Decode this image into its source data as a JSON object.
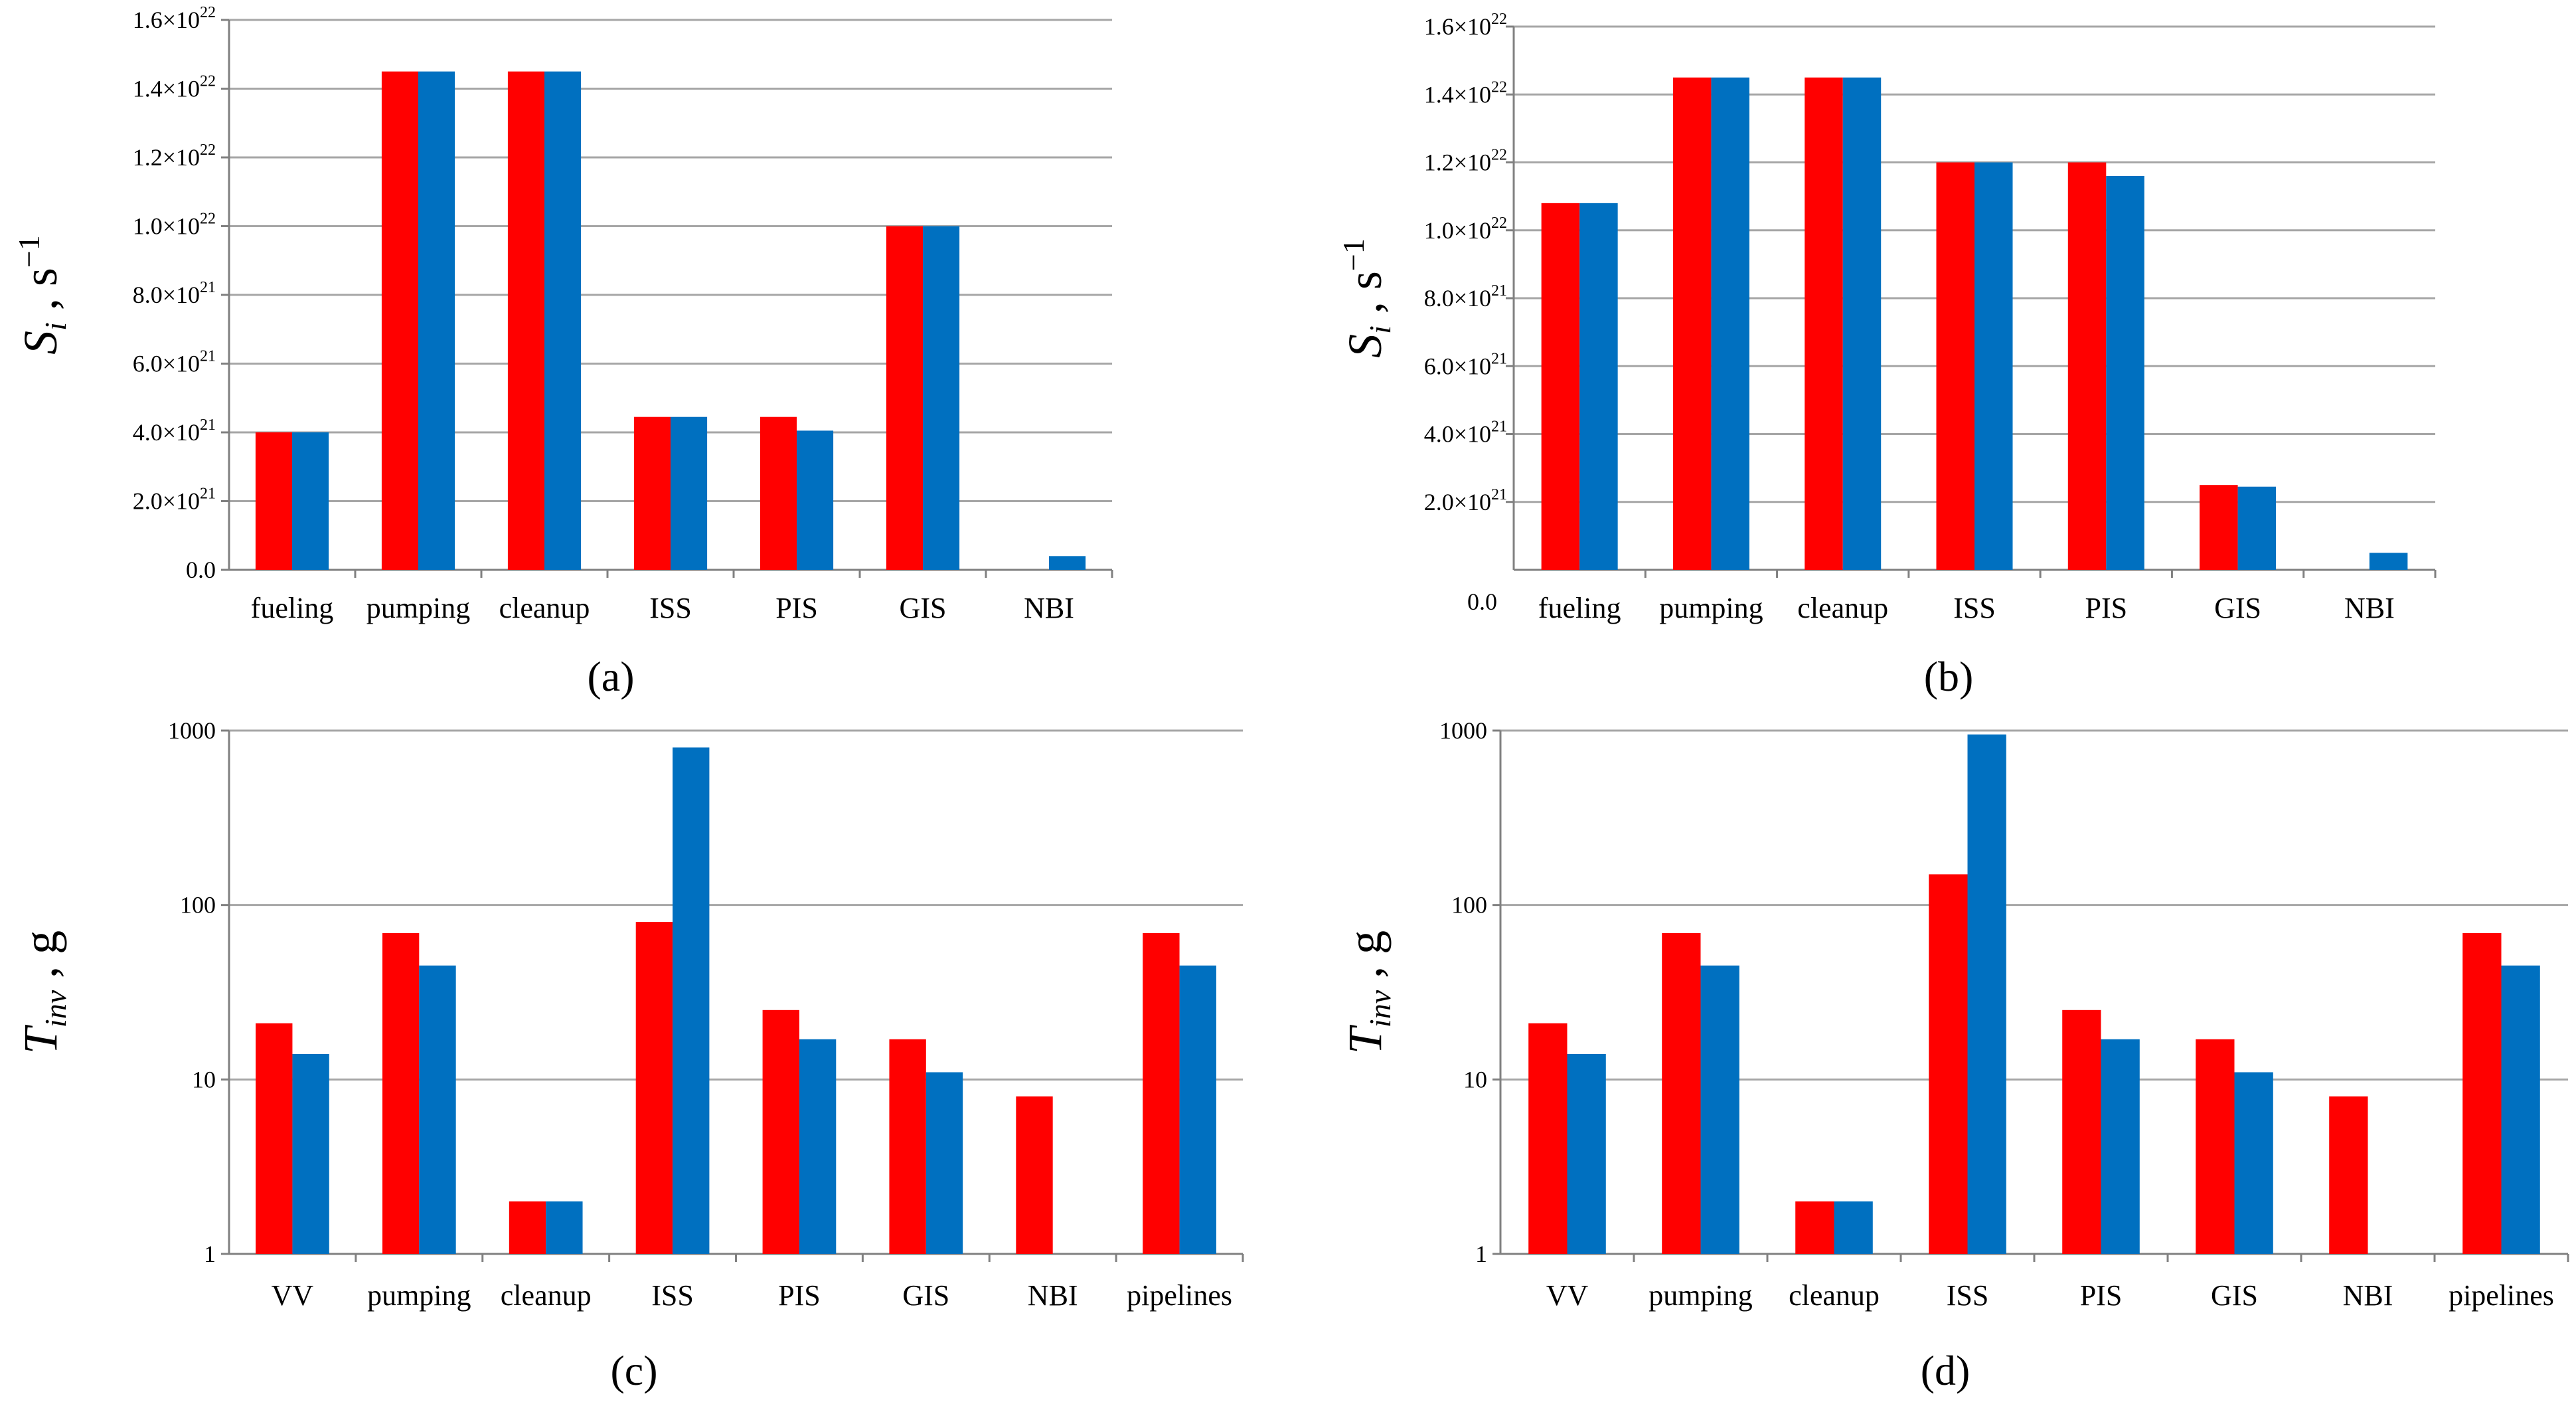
{
  "colors": {
    "series_red": "#ff0000",
    "series_blue": "#0070c0",
    "grid": "#a6a6a6",
    "axis": "#808080"
  },
  "chart_data": [
    {
      "panel": "(a)",
      "type": "bar",
      "scale": "linear",
      "ylabel_main": "S",
      "ylabel_sub": "i",
      "ylabel_tail": " , s",
      "ylabel_sup": "−1",
      "categories": [
        "fueling",
        "pumping",
        "cleanup",
        "ISS",
        "PIS",
        "GIS",
        "NBI"
      ],
      "ylim": [
        0,
        1.6e+22
      ],
      "ticks": [
        {
          "value": 0,
          "label": "0.0"
        },
        {
          "value": 2e+21,
          "mant": "2.0×10",
          "exp": "21"
        },
        {
          "value": 4e+21,
          "mant": "4.0×10",
          "exp": "21"
        },
        {
          "value": 6e+21,
          "mant": "6.0×10",
          "exp": "21"
        },
        {
          "value": 8e+21,
          "mant": "8.0×10",
          "exp": "21"
        },
        {
          "value": 1e+22,
          "mant": "1.0×10",
          "exp": "22"
        },
        {
          "value": 1.2e+22,
          "mant": "1.2×10",
          "exp": "22"
        },
        {
          "value": 1.4e+22,
          "mant": "1.4×10",
          "exp": "22"
        },
        {
          "value": 1.6e+22,
          "mant": "1.6×10",
          "exp": "22"
        }
      ],
      "series": [
        {
          "name": "red",
          "values": [
            4e+21,
            1.45e+22,
            1.45e+22,
            4.45e+21,
            4.45e+21,
            1e+22,
            0
          ]
        },
        {
          "name": "blue",
          "values": [
            4e+21,
            1.45e+22,
            1.45e+22,
            4.45e+21,
            4.05e+21,
            1e+22,
            4e+20
          ]
        }
      ]
    },
    {
      "panel": "(b)",
      "type": "bar",
      "scale": "linear",
      "ylabel_main": "S",
      "ylabel_sub": "i",
      "ylabel_tail": " , s",
      "ylabel_sup": "−1",
      "categories": [
        "fueling",
        "pumping",
        "cleanup",
        "ISS",
        "PIS",
        "GIS",
        "NBI"
      ],
      "ylim": [
        0,
        1.6e+22
      ],
      "zero_label": "0.0",
      "ticks": [
        {
          "value": 2e+21,
          "mant": "2.0×10",
          "exp": "21"
        },
        {
          "value": 4e+21,
          "mant": "4.0×10",
          "exp": "21"
        },
        {
          "value": 6e+21,
          "mant": "6.0×10",
          "exp": "21"
        },
        {
          "value": 8e+21,
          "mant": "8.0×10",
          "exp": "21"
        },
        {
          "value": 1e+22,
          "mant": "1.0×10",
          "exp": "22"
        },
        {
          "value": 1.2e+22,
          "mant": "1.2×10",
          "exp": "22"
        },
        {
          "value": 1.4e+22,
          "mant": "1.4×10",
          "exp": "22"
        },
        {
          "value": 1.6e+22,
          "mant": "1.6×10",
          "exp": "22"
        }
      ],
      "series": [
        {
          "name": "red",
          "values": [
            1.08e+22,
            1.45e+22,
            1.45e+22,
            1.2e+22,
            1.2e+22,
            2.5e+21,
            0
          ]
        },
        {
          "name": "blue",
          "values": [
            1.08e+22,
            1.45e+22,
            1.45e+22,
            1.2e+22,
            1.16e+22,
            2.45e+21,
            5e+20
          ]
        }
      ]
    },
    {
      "panel": "(c)",
      "type": "bar",
      "scale": "log",
      "ylabel_main": "T",
      "ylabel_sub": "inv",
      "ylabel_tail": " , g",
      "ylabel_sup": "",
      "categories": [
        "VV",
        "pumping",
        "cleanup",
        "ISS",
        "PIS",
        "GIS",
        "NBI",
        "pipelines"
      ],
      "ylim": [
        1,
        1000
      ],
      "ticks": [
        {
          "value": 1,
          "label": "1"
        },
        {
          "value": 10,
          "label": "10"
        },
        {
          "value": 100,
          "label": "100"
        },
        {
          "value": 1000,
          "label": "1000"
        }
      ],
      "series": [
        {
          "name": "red",
          "values": [
            21,
            69,
            2,
            80,
            25,
            17,
            8,
            69
          ]
        },
        {
          "name": "blue",
          "values": [
            14,
            45,
            2,
            800,
            17,
            11,
            0,
            45
          ]
        }
      ]
    },
    {
      "panel": "(d)",
      "type": "bar",
      "scale": "log",
      "ylabel_main": "T",
      "ylabel_sub": "inv",
      "ylabel_tail": " , g",
      "ylabel_sup": "",
      "categories": [
        "VV",
        "pumping",
        "cleanup",
        "ISS",
        "PIS",
        "GIS",
        "NBI",
        "pipelines"
      ],
      "ylim": [
        1,
        1000
      ],
      "ticks": [
        {
          "value": 1,
          "label": "1"
        },
        {
          "value": 10,
          "label": "10"
        },
        {
          "value": 100,
          "label": "100"
        },
        {
          "value": 1000,
          "label": "1000"
        }
      ],
      "series": [
        {
          "name": "red",
          "values": [
            21,
            69,
            2,
            150,
            25,
            17,
            8,
            69
          ]
        },
        {
          "name": "blue",
          "values": [
            14,
            45,
            2,
            950,
            17,
            11,
            0,
            45
          ]
        }
      ]
    }
  ]
}
